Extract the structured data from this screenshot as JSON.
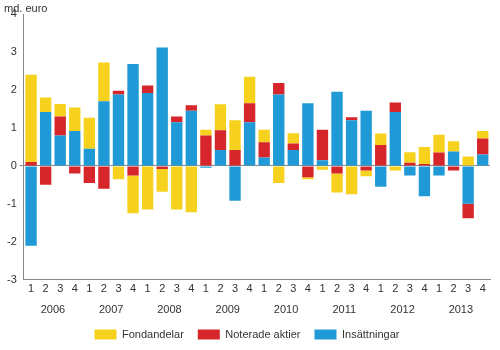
{
  "chart_data": {
    "type": "bar",
    "stacked": true,
    "y_label": "md. euro",
    "categories": [
      "1",
      "2",
      "3",
      "4",
      "1",
      "2",
      "3",
      "4",
      "1",
      "2",
      "3",
      "4",
      "1",
      "2",
      "3",
      "4",
      "1",
      "2",
      "3",
      "4",
      "1",
      "2",
      "3",
      "4",
      "1",
      "2",
      "3",
      "4",
      "1",
      "2",
      "3",
      "4"
    ],
    "groups": [
      "2006",
      "2007",
      "2008",
      "2009",
      "2010",
      "2011",
      "2012",
      "2013"
    ],
    "series": [
      {
        "name": "Insättningar",
        "color": "#1f9ad6",
        "values": [
          -2.1,
          1.42,
          0.8,
          0.92,
          0.45,
          1.7,
          1.88,
          2.68,
          1.92,
          3.12,
          1.15,
          1.45,
          -0.05,
          0.42,
          -0.92,
          1.15,
          0.22,
          1.88,
          0.42,
          1.65,
          0.15,
          1.95,
          1.2,
          1.45,
          -0.55,
          1.42,
          -0.25,
          -0.8,
          -0.25,
          0.38,
          -1.0,
          0.3
        ]
      },
      {
        "name": "Noterade aktier",
        "color": "#d7262b",
        "values": [
          0.1,
          -0.5,
          0.5,
          -0.2,
          -0.45,
          -0.6,
          0.1,
          -0.25,
          0.2,
          -0.08,
          0.15,
          0.15,
          0.8,
          0.52,
          0.42,
          0.5,
          0.4,
          0.3,
          0.17,
          -0.3,
          0.8,
          -0.2,
          0.08,
          -0.12,
          0.55,
          0.25,
          0.08,
          0.05,
          0.35,
          -0.12,
          -0.38,
          0.42
        ]
      },
      {
        "name": "Fondandelar",
        "color": "#f6d21e",
        "values": [
          2.3,
          0.38,
          0.33,
          0.62,
          0.82,
          1.02,
          -0.35,
          -1.0,
          -1.15,
          -0.6,
          -1.15,
          -1.22,
          0.15,
          0.68,
          0.78,
          0.7,
          0.33,
          -0.45,
          0.27,
          -0.05,
          -0.1,
          -0.5,
          -0.75,
          -0.15,
          0.3,
          -0.12,
          0.28,
          0.45,
          0.47,
          0.27,
          0.25,
          0.2
        ]
      }
    ],
    "ylim": [
      -3,
      4
    ],
    "yticks": [
      -3,
      -2,
      -1,
      0,
      1,
      2,
      3,
      4
    ],
    "grid": false,
    "legend": "bottom"
  }
}
